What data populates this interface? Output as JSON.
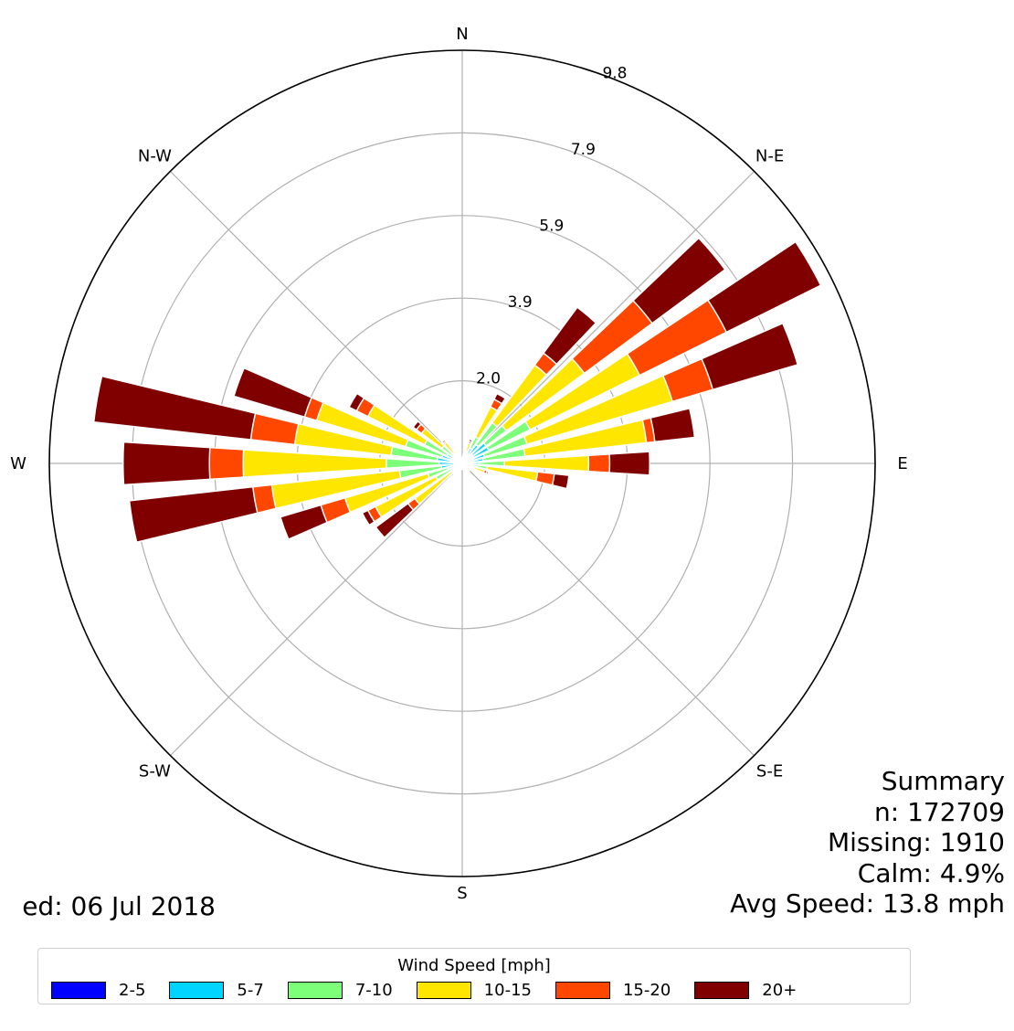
{
  "chart_data": {
    "type": "windrose",
    "units": "mph",
    "directions": [
      "N",
      "N-E",
      "E",
      "S-E",
      "S",
      "S-W",
      "W",
      "N-W"
    ],
    "radial_ticks": [
      "2.0",
      "3.9",
      "5.9",
      "7.9",
      "9.8"
    ],
    "radial_tick_values": [
      1.96,
      3.92,
      5.88,
      7.84,
      9.8
    ],
    "rmax": 9.8,
    "bins": [
      "2-5",
      "5-7",
      "7-10",
      "10-15",
      "15-20",
      "20+"
    ],
    "colors": [
      "#0000ff",
      "#00d4ff",
      "#7dff7a",
      "#ffe600",
      "#ff4700",
      "#800000"
    ],
    "sector_angles_deg": [
      0,
      10,
      20,
      30,
      40,
      50,
      60,
      70,
      80,
      90,
      100,
      110,
      120,
      130,
      140,
      150,
      160,
      170,
      180,
      190,
      200,
      210,
      220,
      230,
      240,
      250,
      260,
      270,
      280,
      290,
      300,
      310,
      320,
      330,
      340,
      350
    ],
    "cumulative_frequency_percent": [
      [
        0.05,
        0.08,
        0.1,
        0.12,
        0.13,
        0.14
      ],
      [
        0.07,
        0.12,
        0.17,
        0.22,
        0.24,
        0.25
      ],
      [
        0.1,
        0.18,
        0.3,
        0.5,
        0.55,
        0.6
      ],
      [
        0.2,
        0.4,
        0.7,
        1.5,
        1.7,
        1.85
      ],
      [
        0.25,
        0.55,
        1.2,
        2.9,
        3.25,
        4.6
      ],
      [
        0.3,
        0.7,
        1.3,
        3.6,
        5.6,
        7.75
      ],
      [
        0.3,
        0.7,
        1.8,
        4.7,
        7.0,
        9.5
      ],
      [
        0.2,
        0.55,
        1.6,
        5.2,
        6.2,
        8.3
      ],
      [
        0.2,
        0.5,
        1.5,
        4.4,
        4.6,
        5.55
      ],
      [
        0.15,
        0.4,
        1.0,
        3.0,
        3.5,
        4.45
      ],
      [
        0.1,
        0.3,
        0.6,
        1.8,
        2.2,
        2.55
      ],
      [
        0.07,
        0.15,
        0.3,
        0.55,
        0.62,
        0.66
      ],
      [
        0.05,
        0.1,
        0.18,
        0.3,
        0.32,
        0.35
      ],
      [
        0.04,
        0.08,
        0.12,
        0.2,
        0.22,
        0.24
      ],
      [
        0.03,
        0.06,
        0.1,
        0.15,
        0.16,
        0.17
      ],
      [
        0.03,
        0.05,
        0.08,
        0.12,
        0.13,
        0.14
      ],
      [
        0.03,
        0.05,
        0.08,
        0.12,
        0.13,
        0.14
      ],
      [
        0.03,
        0.05,
        0.08,
        0.12,
        0.13,
        0.14
      ],
      [
        0.03,
        0.05,
        0.08,
        0.12,
        0.13,
        0.14
      ],
      [
        0.03,
        0.05,
        0.08,
        0.12,
        0.13,
        0.14
      ],
      [
        0.03,
        0.05,
        0.08,
        0.12,
        0.13,
        0.14
      ],
      [
        0.04,
        0.07,
        0.1,
        0.15,
        0.16,
        0.17
      ],
      [
        0.05,
        0.1,
        0.18,
        0.3,
        0.33,
        0.37
      ],
      [
        0.07,
        0.15,
        0.3,
        1.4,
        1.6,
        2.55
      ],
      [
        0.1,
        0.25,
        0.7,
        2.3,
        2.5,
        2.65
      ],
      [
        0.15,
        0.35,
        0.85,
        2.9,
        3.5,
        4.5
      ],
      [
        0.2,
        0.5,
        1.5,
        4.55,
        5.0,
        7.95
      ],
      [
        0.2,
        0.55,
        1.8,
        5.2,
        6.0,
        8.05
      ],
      [
        0.25,
        0.6,
        1.7,
        4.0,
        5.05,
        8.8
      ],
      [
        0.2,
        0.5,
        1.4,
        3.6,
        3.9,
        5.65
      ],
      [
        0.15,
        0.4,
        1.0,
        2.5,
        2.8,
        3.0
      ],
      [
        0.1,
        0.25,
        0.6,
        1.2,
        1.35,
        1.45
      ],
      [
        0.07,
        0.15,
        0.3,
        0.62,
        0.66,
        0.7
      ],
      [
        0.05,
        0.1,
        0.2,
        0.32,
        0.34,
        0.36
      ],
      [
        0.04,
        0.07,
        0.12,
        0.19,
        0.21,
        0.23
      ],
      [
        0.04,
        0.06,
        0.09,
        0.13,
        0.14,
        0.15
      ]
    ],
    "legend": {
      "title": "Wind Speed [mph]",
      "location": "bottom"
    }
  },
  "summary": {
    "title": "Summary",
    "n": "n: 172709",
    "missing": "Missing: 1910",
    "calm": "Calm: 4.9%",
    "avg_speed": "Avg Speed: 13.8 mph"
  },
  "generated_text": "ed: 06 Jul 2018"
}
